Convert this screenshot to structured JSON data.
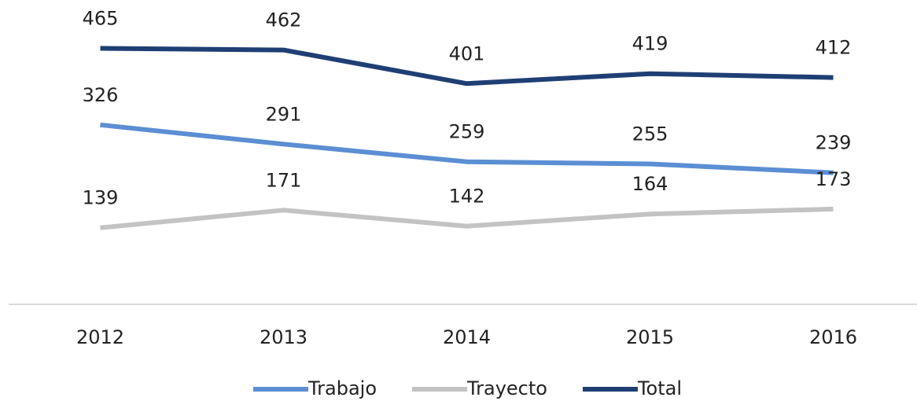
{
  "chart_data": {
    "type": "line",
    "categories": [
      "2012",
      "2013",
      "2014",
      "2015",
      "2016"
    ],
    "series": [
      {
        "name": "Trabajo",
        "color": "#5b8ed3",
        "values": [
          326,
          291,
          259,
          255,
          239
        ]
      },
      {
        "name": "Trayecto",
        "color": "#c3c3c3",
        "values": [
          139,
          171,
          142,
          164,
          173
        ]
      },
      {
        "name": "Total",
        "color": "#1f3f74",
        "values": [
          465,
          462,
          401,
          419,
          412
        ]
      }
    ],
    "ylim": [
      0,
      500
    ],
    "legend": "bottom"
  }
}
